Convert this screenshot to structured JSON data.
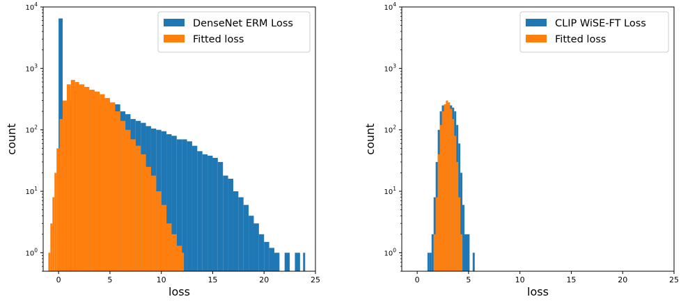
{
  "chart_data": [
    {
      "type": "histogram",
      "xlabel": "loss",
      "ylabel": "count",
      "xlim": [
        -1.5,
        25
      ],
      "ylim": [
        0.5,
        10000
      ],
      "yscale": "log",
      "xticks": [
        "0",
        "5",
        "10",
        "15",
        "20",
        "25"
      ],
      "yticks": [
        {
          "value": 1,
          "exp": "0"
        },
        {
          "value": 10,
          "exp": "1"
        },
        {
          "value": 100,
          "exp": "2"
        },
        {
          "value": 1000,
          "exp": "3"
        },
        {
          "value": 10000,
          "exp": "4"
        }
      ],
      "legend_position": "top-right",
      "series": [
        {
          "name": "DenseNet ERM Loss",
          "color": "#1f77b4",
          "points": [
            [
              0.0,
              6500
            ],
            [
              0.4,
              150
            ],
            [
              1,
              300
            ],
            [
              1.5,
              450
            ],
            [
              2,
              500
            ],
            [
              2.5,
              420
            ],
            [
              3,
              430
            ],
            [
              3.5,
              350
            ],
            [
              4,
              300
            ],
            [
              4.5,
              300
            ],
            [
              5,
              270
            ],
            [
              5.5,
              260
            ],
            [
              6,
              200
            ],
            [
              6.5,
              180
            ],
            [
              7,
              150
            ],
            [
              7.5,
              140
            ],
            [
              8,
              130
            ],
            [
              8.5,
              115
            ],
            [
              9,
              105
            ],
            [
              9.5,
              100
            ],
            [
              10,
              95
            ],
            [
              10.5,
              85
            ],
            [
              11,
              80
            ],
            [
              11.5,
              70
            ],
            [
              12,
              70
            ],
            [
              12.5,
              65
            ],
            [
              13,
              55
            ],
            [
              13.5,
              45
            ],
            [
              14,
              40
            ],
            [
              14.5,
              38
            ],
            [
              15,
              35
            ],
            [
              15.5,
              30
            ],
            [
              16,
              18
            ],
            [
              16.5,
              16
            ],
            [
              17,
              10
            ],
            [
              17.5,
              8
            ],
            [
              18,
              6
            ],
            [
              18.5,
              4
            ],
            [
              19,
              3
            ],
            [
              19.5,
              2
            ],
            [
              20,
              1.5
            ],
            [
              20.5,
              1.2
            ],
            [
              21,
              1
            ],
            [
              22,
              1
            ],
            [
              23,
              1
            ],
            [
              23.8,
              1
            ]
          ]
        },
        {
          "name": "Fitted loss",
          "color": "#ff7f0e",
          "points": [
            [
              -1.0,
              1
            ],
            [
              -0.8,
              3
            ],
            [
              -0.6,
              8
            ],
            [
              -0.4,
              20
            ],
            [
              -0.2,
              50
            ],
            [
              0.1,
              150
            ],
            [
              0.4,
              300
            ],
            [
              0.8,
              550
            ],
            [
              1.2,
              650
            ],
            [
              1.6,
              600
            ],
            [
              2,
              550
            ],
            [
              2.5,
              500
            ],
            [
              3,
              450
            ],
            [
              3.5,
              420
            ],
            [
              4,
              380
            ],
            [
              4.5,
              330
            ],
            [
              5,
              280
            ],
            [
              5.5,
              200
            ],
            [
              6,
              140
            ],
            [
              6.5,
              100
            ],
            [
              7,
              70
            ],
            [
              7.5,
              55
            ],
            [
              8,
              40
            ],
            [
              8.5,
              25
            ],
            [
              9,
              18
            ],
            [
              9.5,
              10
            ],
            [
              10,
              6
            ],
            [
              10.5,
              3
            ],
            [
              11,
              2
            ],
            [
              11.5,
              1.3
            ],
            [
              12,
              1
            ]
          ]
        }
      ]
    },
    {
      "type": "histogram",
      "xlabel": "loss",
      "ylabel": "count",
      "xlim": [
        -1.5,
        25
      ],
      "ylim": [
        0.5,
        10000
      ],
      "yscale": "log",
      "xticks": [
        "0",
        "5",
        "10",
        "15",
        "20",
        "25"
      ],
      "yticks": [
        {
          "value": 1,
          "exp": "0"
        },
        {
          "value": 10,
          "exp": "1"
        },
        {
          "value": 100,
          "exp": "2"
        },
        {
          "value": 1000,
          "exp": "3"
        },
        {
          "value": 10000,
          "exp": "4"
        }
      ],
      "legend_position": "top-right",
      "series": [
        {
          "name": "CLIP WiSE-FT Loss",
          "color": "#1f77b4",
          "points": [
            [
              1.0,
              1
            ],
            [
              1.2,
              1
            ],
            [
              1.4,
              2
            ],
            [
              1.6,
              8
            ],
            [
              1.8,
              30
            ],
            [
              2.0,
              100
            ],
            [
              2.2,
              200
            ],
            [
              2.4,
              250
            ],
            [
              2.6,
              260
            ],
            [
              2.8,
              270
            ],
            [
              3.0,
              260
            ],
            [
              3.2,
              250
            ],
            [
              3.4,
              230
            ],
            [
              3.6,
              200
            ],
            [
              3.8,
              120
            ],
            [
              4.0,
              60
            ],
            [
              4.2,
              20
            ],
            [
              4.4,
              6
            ],
            [
              4.6,
              2
            ],
            [
              5.4,
              1
            ]
          ]
        },
        {
          "name": "Fitted loss",
          "color": "#ff7f0e",
          "points": [
            [
              1.6,
              2
            ],
            [
              1.8,
              8
            ],
            [
              2.0,
              40
            ],
            [
              2.2,
              120
            ],
            [
              2.4,
              200
            ],
            [
              2.6,
              260
            ],
            [
              2.8,
              300
            ],
            [
              3.0,
              280
            ],
            [
              3.2,
              220
            ],
            [
              3.4,
              150
            ],
            [
              3.6,
              80
            ],
            [
              3.8,
              30
            ],
            [
              4.0,
              8
            ],
            [
              4.2,
              2
            ]
          ]
        }
      ]
    }
  ]
}
